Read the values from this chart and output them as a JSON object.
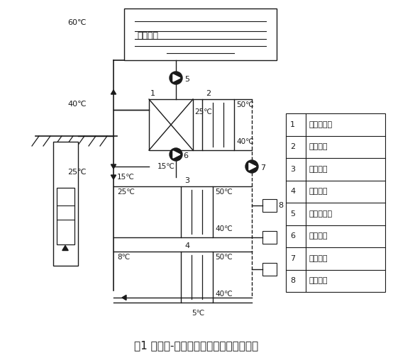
{
  "title": "图1 污水源-集中供热复合采暖系统工艺图",
  "legend_items": [
    [
      "1",
      "板式换热器"
    ],
    [
      "2",
      "一级热泵"
    ],
    [
      "3",
      "二级热泵"
    ],
    [
      "4",
      "三级热泵"
    ],
    [
      "5",
      "温泉尾水泵"
    ],
    [
      "6",
      "中介水泵"
    ],
    [
      "7",
      "用户水泵"
    ],
    [
      "8",
      "空调末端"
    ]
  ],
  "bg_color": "#ffffff",
  "line_color": "#1a1a1a",
  "figsize": [
    5.54,
    5.01
  ],
  "dpi": 100
}
